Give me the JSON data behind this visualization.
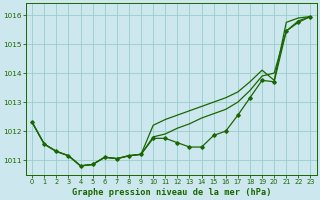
{
  "background_color": "#cce8ee",
  "grid_color": "#99cccc",
  "line_color": "#1a6600",
  "title": "Graphe pression niveau de la mer (hPa)",
  "xlim": [
    -0.5,
    23.5
  ],
  "ylim": [
    1010.5,
    1016.4
  ],
  "yticks": [
    1011,
    1012,
    1013,
    1014,
    1015,
    1016
  ],
  "xticks": [
    0,
    1,
    2,
    3,
    4,
    5,
    6,
    7,
    8,
    9,
    10,
    11,
    12,
    13,
    14,
    15,
    16,
    17,
    18,
    19,
    20,
    21,
    22,
    23
  ],
  "s_marked": [
    1012.3,
    1011.55,
    1011.3,
    1011.15,
    1010.8,
    1010.85,
    1011.1,
    1011.05,
    1011.15,
    1011.2,
    1011.75,
    1011.75,
    1011.6,
    1011.45,
    1011.45,
    1011.85,
    1012.0,
    1012.55,
    1013.15,
    1013.75,
    1013.7,
    1015.45,
    1015.75,
    1015.95
  ],
  "s_upper": [
    1012.3,
    1011.55,
    1011.3,
    1011.15,
    1010.8,
    1010.85,
    1011.1,
    1011.05,
    1011.15,
    1011.2,
    1012.2,
    1012.4,
    1012.55,
    1012.7,
    1012.85,
    1013.0,
    1013.15,
    1013.35,
    1013.7,
    1014.1,
    1013.75,
    1015.75,
    1015.9,
    1015.95
  ],
  "s_mid": [
    1012.3,
    1011.55,
    1011.3,
    1011.15,
    1010.8,
    1010.85,
    1011.1,
    1011.05,
    1011.15,
    1011.2,
    1011.8,
    1011.9,
    1012.1,
    1012.25,
    1012.45,
    1012.6,
    1012.75,
    1013.0,
    1013.4,
    1013.9,
    1014.0,
    1015.45,
    1015.8,
    1015.95
  ]
}
